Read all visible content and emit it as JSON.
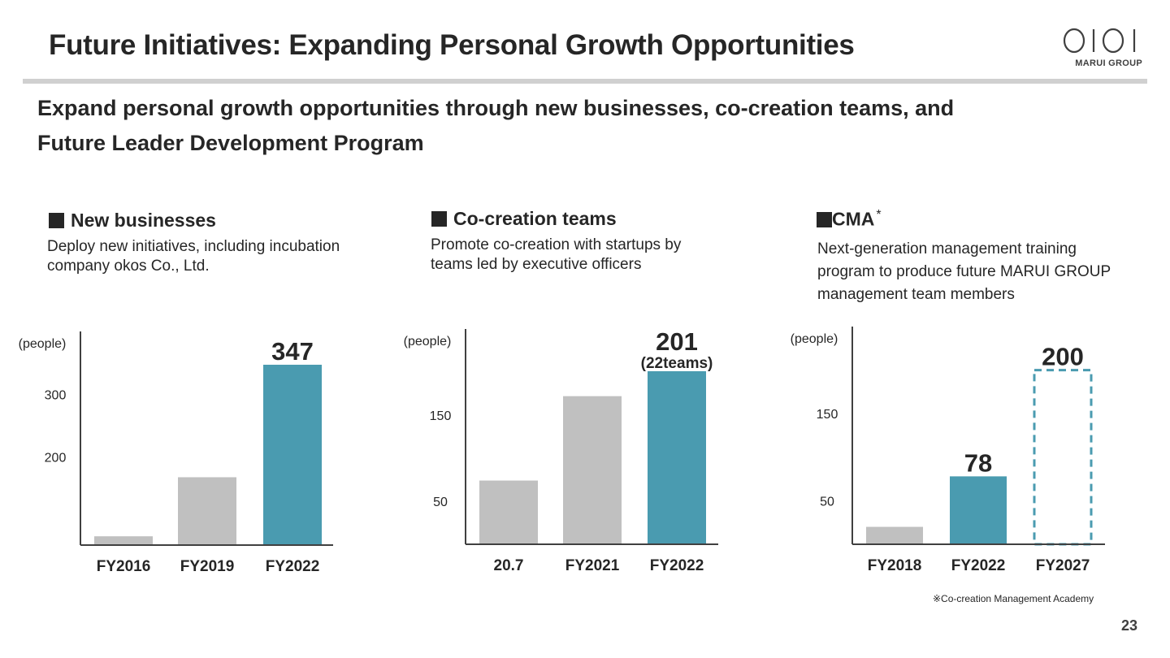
{
  "header": {
    "title": "Future Initiatives: Expanding Personal Growth Opportunities",
    "logo_text": "MARUI GROUP"
  },
  "subtitle": {
    "line1": "Expand personal growth opportunities through new businesses, co-creation teams, and",
    "line2": "Future Leader Development Program"
  },
  "sections": [
    {
      "heading": "New businesses",
      "desc1": "Deploy new initiatives, including incubation",
      "desc2": "company okos Co., Ltd.",
      "desc3": ""
    },
    {
      "heading": "Co-creation teams",
      "desc1": "Promote co-creation with startups by",
      "desc2": "teams led by executive officers",
      "desc3": ""
    },
    {
      "heading": "CMA",
      "heading_mark": "*",
      "desc1": "Next-generation management training",
      "desc2": "program to produce future MARUI GROUP",
      "desc3": "management team members"
    }
  ],
  "colors": {
    "gray": "#c0c0c0",
    "accent": "#4a9bb0",
    "axis": "#404040"
  },
  "chart_data": [
    {
      "type": "bar",
      "ylabel": "(people)",
      "yticks": [
        200,
        300
      ],
      "ylim": [
        60,
        400
      ],
      "categories": [
        "FY2016",
        "FY2019",
        "FY2022"
      ],
      "values": [
        74,
        168,
        347
      ],
      "styles": [
        "gray",
        "gray",
        "accent"
      ],
      "labels": [
        "",
        "",
        "347"
      ],
      "sublabels": [
        "",
        "",
        ""
      ]
    },
    {
      "type": "bar",
      "ylabel": "(people)",
      "yticks": [
        50,
        150
      ],
      "ylim": [
        0,
        250
      ],
      "categories": [
        "20.7",
        "FY2021",
        "FY2022"
      ],
      "values": [
        74,
        172,
        201
      ],
      "styles": [
        "gray",
        "gray",
        "accent"
      ],
      "labels": [
        "",
        "",
        "201"
      ],
      "sublabels": [
        "",
        "",
        "(22teams)"
      ]
    },
    {
      "type": "bar",
      "ylabel": "(people)",
      "yticks": [
        50,
        150
      ],
      "ylim": [
        0,
        250
      ],
      "categories": [
        "FY2018",
        "FY2022",
        "FY2027"
      ],
      "values": [
        20,
        78,
        200
      ],
      "styles": [
        "gray",
        "accent",
        "dashed"
      ],
      "labels": [
        "",
        "78",
        "200"
      ],
      "sublabels": [
        "",
        "",
        ""
      ]
    }
  ],
  "footnote": "※Co-creation Management Academy",
  "page_number": "23"
}
